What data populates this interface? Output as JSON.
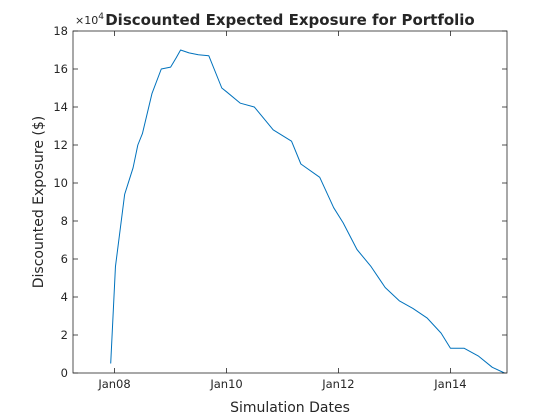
{
  "chart_data": {
    "type": "line",
    "title": "Discounted Expected Exposure for Portfolio",
    "xlabel": "Simulation Dates",
    "ylabel": "Discounted Exposure ($)",
    "y_exponent_label": "×10",
    "y_exponent_power": "4",
    "y_multiplier": 10000,
    "xlim": [
      "2007-04-05",
      "2015-01-05"
    ],
    "ylim": [
      0,
      18
    ],
    "x_ticks": [
      {
        "date": "2008-01-01",
        "label": "Jan08"
      },
      {
        "date": "2010-01-01",
        "label": "Jan10"
      },
      {
        "date": "2012-01-01",
        "label": "Jan12"
      },
      {
        "date": "2014-01-01",
        "label": "Jan14"
      }
    ],
    "y_ticks": [
      0,
      2,
      4,
      6,
      8,
      10,
      12,
      14,
      16,
      18
    ],
    "grid": false,
    "box": true,
    "line_color": "#0072BD",
    "series": [
      {
        "x": [
          "2007-12-07",
          "2008-01-07",
          "2008-03-07",
          "2008-05-01",
          "2008-06-01",
          "2008-07-01",
          "2008-09-01",
          "2008-11-01",
          "2009-01-01",
          "2009-02-07",
          "2009-03-07",
          "2009-05-01",
          "2009-07-01",
          "2009-09-07",
          "2009-12-01",
          "2010-01-01",
          "2010-04-01",
          "2010-07-01",
          "2010-09-01",
          "2010-11-01",
          "2011-03-01",
          "2011-05-01",
          "2011-09-01",
          "2011-12-01",
          "2012-02-01",
          "2012-05-01",
          "2012-08-01",
          "2012-11-01",
          "2013-02-01",
          "2013-05-01",
          "2013-08-01",
          "2013-11-01",
          "2014-01-01",
          "2014-04-01",
          "2014-07-01",
          "2014-10-01",
          "2014-12-20"
        ],
        "y": [
          0.5,
          5.6,
          9.4,
          10.8,
          12.0,
          12.6,
          14.7,
          16.0,
          16.1,
          16.6,
          17.0,
          16.85,
          16.75,
          16.7,
          15.0,
          14.8,
          14.2,
          14.0,
          13.4,
          12.8,
          12.2,
          11.0,
          10.3,
          8.7,
          7.9,
          6.5,
          5.6,
          4.5,
          3.8,
          3.4,
          2.9,
          2.1,
          1.3,
          1.3,
          0.9,
          0.3,
          0.0
        ]
      }
    ]
  }
}
